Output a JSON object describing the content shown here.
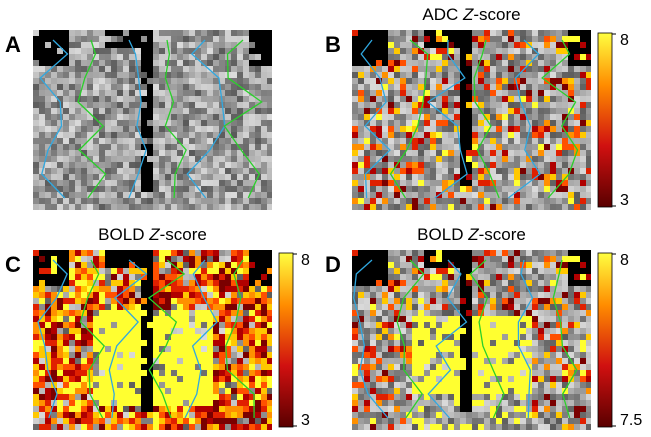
{
  "panels": [
    {
      "label": "A"
    },
    {
      "label": "B",
      "title": {
        "before": "ADC ",
        "italic": "Z",
        "after": "-score"
      },
      "colorbar": {
        "max": 8,
        "min": 3
      }
    },
    {
      "label": "C",
      "title": {
        "before": "BOLD ",
        "italic": "Z",
        "after": "-score"
      },
      "colorbar": {
        "max": 8,
        "min": 3
      }
    },
    {
      "label": "D",
      "title": {
        "before": "BOLD ",
        "italic": "Z",
        "after": "-score"
      },
      "colorbar": {
        "max": 8,
        "min": 7.5
      }
    }
  ]
}
